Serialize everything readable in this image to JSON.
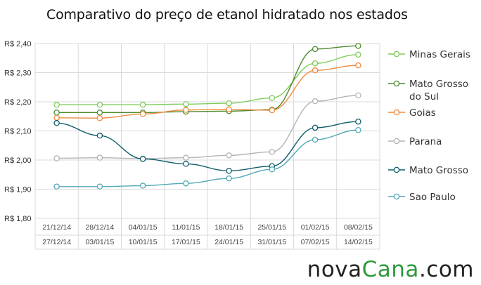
{
  "chart_data": {
    "type": "line",
    "title": "Comparativo do preço de etanol hidratado nos estados",
    "x_top": [
      "21/12/14",
      "28/12/14",
      "04/01/15",
      "11/01/15",
      "18/01/15",
      "25/01/15",
      "01/02/15",
      "08/02/15"
    ],
    "x_bottom": [
      "27/12/14",
      "03/01/15",
      "10/01/15",
      "17/01/15",
      "24/01/15",
      "31/01/15",
      "07/02/15",
      "14/02/15"
    ],
    "yticks": [
      "R$ 1,80",
      "R$ 1,90",
      "R$ 2,00",
      "R$ 2,10",
      "R$ 2,20",
      "R$ 2,30",
      "R$ 2,40"
    ],
    "ylim": [
      1.8,
      2.4
    ],
    "grid": true,
    "legend_position": "right",
    "series": [
      {
        "name": "Minas Gerais",
        "lines": [
          "Minas Gerais"
        ],
        "color": "#7fcc5a",
        "values": [
          2.19,
          2.19,
          2.19,
          2.192,
          2.195,
          2.213,
          2.332,
          2.362
        ]
      },
      {
        "name": "Mato Grosso do Sul",
        "lines": [
          "Mato Grosso",
          "do Sul"
        ],
        "color": "#4e8a2c",
        "values": [
          2.163,
          2.163,
          2.163,
          2.166,
          2.168,
          2.173,
          2.381,
          2.392
        ]
      },
      {
        "name": "Goias",
        "lines": [
          "Goias"
        ],
        "color": "#f08a3c",
        "values": [
          2.145,
          2.144,
          2.158,
          2.172,
          2.174,
          2.171,
          2.308,
          2.325
        ]
      },
      {
        "name": "Parana",
        "lines": [
          "Parana"
        ],
        "color": "#b4b4b4",
        "values": [
          2.006,
          2.008,
          2.005,
          2.008,
          2.016,
          2.028,
          2.202,
          2.222
        ]
      },
      {
        "name": "Mato Grosso",
        "lines": [
          "Mato Grosso"
        ],
        "color": "#0f5c6b",
        "values": [
          2.127,
          2.084,
          2.004,
          1.987,
          1.963,
          1.979,
          2.111,
          2.132
        ]
      },
      {
        "name": "Sao Paulo",
        "lines": [
          "Sao Paulo"
        ],
        "color": "#52a8b8",
        "values": [
          1.909,
          1.909,
          1.912,
          1.92,
          1.937,
          1.968,
          2.07,
          2.103
        ]
      }
    ]
  },
  "logo": {
    "part1": "nova",
    "part2": "Cana",
    "part3": ".com"
  }
}
